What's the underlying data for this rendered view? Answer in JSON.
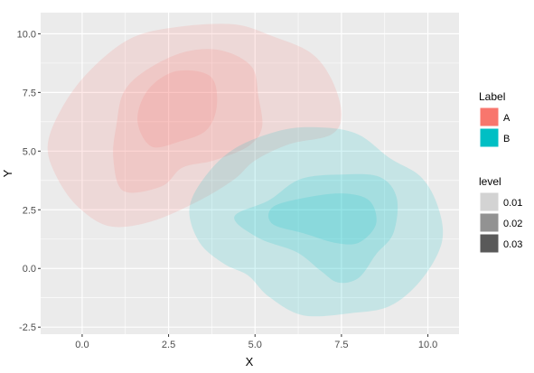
{
  "chart_data": {
    "type": "density-contour",
    "xlabel": "X",
    "ylabel": "Y",
    "xlim": [
      -1.2,
      10.9
    ],
    "ylim": [
      -2.8,
      10.9
    ],
    "x_ticks": [
      0.0,
      2.5,
      5.0,
      7.5,
      10.0
    ],
    "x_tick_labels": [
      "0.0",
      "2.5",
      "5.0",
      "7.5",
      "10.0"
    ],
    "y_ticks": [
      -2.5,
      0.0,
      2.5,
      5.0,
      7.5,
      10.0
    ],
    "y_tick_labels": [
      "-2.5",
      "0.0",
      "2.5",
      "5.0",
      "7.5",
      "10.0"
    ],
    "grid": true,
    "panel_background": "#ebebeb",
    "legend_position": "right",
    "series": [
      {
        "name": "A",
        "color": "#f8766d",
        "levels": [
          {
            "level": 0.01,
            "points": [
              [
                1.4,
                9.8
              ],
              [
                2.8,
                10.3
              ],
              [
                4.4,
                10.4
              ],
              [
                5.5,
                9.9
              ],
              [
                6.6,
                9.2
              ],
              [
                7.2,
                8.1
              ],
              [
                7.5,
                6.6
              ],
              [
                7.2,
                5.7
              ],
              [
                6.0,
                5.3
              ],
              [
                5.0,
                4.6
              ],
              [
                4.4,
                3.8
              ],
              [
                3.4,
                2.9
              ],
              [
                2.0,
                2.0
              ],
              [
                0.8,
                1.8
              ],
              [
                -0.1,
                2.6
              ],
              [
                -0.7,
                3.8
              ],
              [
                -1.0,
                5.2
              ],
              [
                -0.6,
                6.8
              ],
              [
                0.2,
                8.4
              ]
            ]
          },
          {
            "level": 0.02,
            "points": [
              [
                1.8,
                8.4
              ],
              [
                2.9,
                9.2
              ],
              [
                4.0,
                9.3
              ],
              [
                4.9,
                8.6
              ],
              [
                5.1,
                7.3
              ],
              [
                5.2,
                6.0
              ],
              [
                4.8,
                5.2
              ],
              [
                3.8,
                4.6
              ],
              [
                2.9,
                4.3
              ],
              [
                2.3,
                3.5
              ],
              [
                1.2,
                3.3
              ],
              [
                0.9,
                4.7
              ],
              [
                1.0,
                6.2
              ],
              [
                1.2,
                7.5
              ]
            ]
          },
          {
            "level": 0.03,
            "points": [
              [
                1.9,
                7.6
              ],
              [
                2.7,
                8.4
              ],
              [
                3.7,
                8.2
              ],
              [
                3.9,
                7.0
              ],
              [
                3.6,
                5.9
              ],
              [
                2.8,
                5.4
              ],
              [
                2.0,
                5.2
              ],
              [
                1.6,
                6.3
              ]
            ]
          }
        ]
      },
      {
        "name": "B",
        "color": "#00bfc4",
        "levels": [
          {
            "level": 0.01,
            "points": [
              [
                4.4,
                5.1
              ],
              [
                5.8,
                5.9
              ],
              [
                7.0,
                6.0
              ],
              [
                8.0,
                5.7
              ],
              [
                8.9,
                4.7
              ],
              [
                9.8,
                3.9
              ],
              [
                10.3,
                2.6
              ],
              [
                10.4,
                1.1
              ],
              [
                9.8,
                -0.5
              ],
              [
                8.9,
                -1.6
              ],
              [
                7.8,
                -1.9
              ],
              [
                6.4,
                -2.0
              ],
              [
                5.4,
                -1.2
              ],
              [
                4.8,
                -0.3
              ],
              [
                4.1,
                0.2
              ],
              [
                3.4,
                1.1
              ],
              [
                3.1,
                2.5
              ],
              [
                3.5,
                3.8
              ]
            ]
          },
          {
            "level": 0.02,
            "points": [
              [
                5.4,
                2.9
              ],
              [
                6.3,
                3.8
              ],
              [
                7.5,
                4.0
              ],
              [
                8.6,
                3.9
              ],
              [
                9.1,
                3.0
              ],
              [
                9.0,
                1.5
              ],
              [
                8.5,
                0.6
              ],
              [
                8.0,
                -0.4
              ],
              [
                7.4,
                -0.6
              ],
              [
                6.9,
                -0.1
              ],
              [
                6.2,
                0.7
              ],
              [
                5.1,
                1.3
              ],
              [
                4.4,
                2.2
              ]
            ]
          },
          {
            "level": 0.03,
            "points": [
              [
                5.5,
                2.6
              ],
              [
                6.4,
                3.0
              ],
              [
                7.5,
                3.2
              ],
              [
                8.3,
                2.9
              ],
              [
                8.5,
                1.9
              ],
              [
                8.0,
                1.1
              ],
              [
                7.3,
                1.1
              ],
              [
                6.4,
                1.5
              ],
              [
                5.5,
                1.9
              ]
            ]
          }
        ]
      }
    ],
    "legends": [
      {
        "title": "Label",
        "items": [
          {
            "label": "A",
            "color": "#f8766d"
          },
          {
            "label": "B",
            "color": "#00bfc4"
          }
        ]
      },
      {
        "title": "level",
        "items": [
          {
            "label": "0.01",
            "color": "#d3d3d3"
          },
          {
            "label": "0.02",
            "color": "#929292"
          },
          {
            "label": "0.03",
            "color": "#595959"
          }
        ]
      }
    ]
  }
}
